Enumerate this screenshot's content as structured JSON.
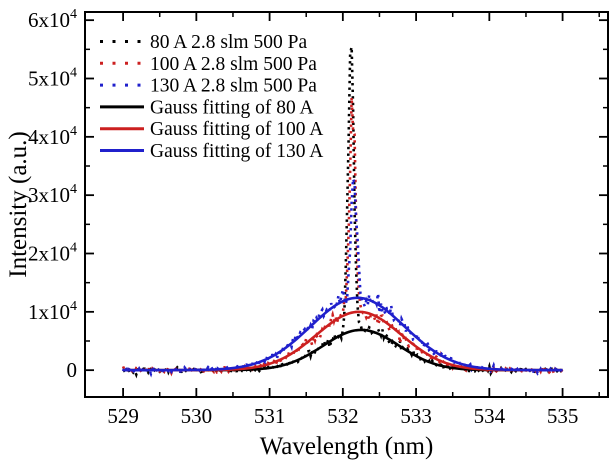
{
  "chart_data": {
    "type": "line",
    "title": "",
    "xlabel": "Wavelength (nm)",
    "ylabel": "Intensity (a.u.)",
    "xlim": [
      528.48,
      535.62
    ],
    "ylim": [
      -4600,
      61400
    ],
    "x_major_ticks": [
      529,
      530,
      531,
      532,
      533,
      534,
      535
    ],
    "x_minor_step": 0.5,
    "y_major_ticks": [
      0,
      10000,
      20000,
      30000,
      40000,
      50000,
      60000
    ],
    "y_tick_labels": [
      "0",
      "1x10^4",
      "2x10^4",
      "3x10^4",
      "4x10^4",
      "5x10^4",
      "6x10^4"
    ],
    "y_minor_step": 5000,
    "grid": false,
    "legend_position": "upper-left",
    "background_color": "#ffffff",
    "axis_color": "#000000",
    "colors": {
      "black": "#000000",
      "red": "#cc2020",
      "blue": "#2020cc"
    },
    "series": [
      {
        "label": "80 A 2.8 slm 500 Pa",
        "color": "#000000",
        "line_style": "dotted",
        "role": "measured",
        "x_range": [
          529,
          535
        ],
        "gauss": {
          "center": 532.25,
          "sigma": 0.52,
          "amplitude": 6900
        },
        "spike": {
          "center": 532.11,
          "sigma": 0.04,
          "amplitude": 47600
        },
        "peak_intensity": 54400,
        "noise_sd_base": 230,
        "noise_sd_rel": 0.045,
        "seed": 42
      },
      {
        "label": "100 A 2.8 slm 500 Pa",
        "color": "#cc2020",
        "line_style": "dotted",
        "role": "measured",
        "x_range": [
          529,
          535
        ],
        "gauss": {
          "center": 532.22,
          "sigma": 0.58,
          "amplitude": 10000
        },
        "spike": {
          "center": 532.13,
          "sigma": 0.04,
          "amplitude": 37000
        },
        "peak_intensity": 46900,
        "noise_sd_base": 230,
        "noise_sd_rel": 0.045,
        "seed": 7
      },
      {
        "label": "130 A 2.8 slm 500 Pa",
        "color": "#2020cc",
        "line_style": "dotted",
        "role": "measured",
        "x_range": [
          529,
          535
        ],
        "gauss": {
          "center": 532.2,
          "sigma": 0.64,
          "amplitude": 12400
        },
        "spike": {
          "center": 532.15,
          "sigma": 0.04,
          "amplitude": 20500
        },
        "peak_intensity": 32900,
        "noise_sd_base": 230,
        "noise_sd_rel": 0.045,
        "seed": 13
      },
      {
        "label": "Gauss fitting of 80 A",
        "color": "#000000",
        "line_style": "solid",
        "role": "fit",
        "x_range": [
          529,
          535
        ],
        "gauss": {
          "center": 532.25,
          "sigma": 0.52,
          "amplitude": 6900
        }
      },
      {
        "label": "Gauss fitting of 100 A",
        "color": "#cc2020",
        "line_style": "solid",
        "role": "fit",
        "x_range": [
          529,
          535
        ],
        "gauss": {
          "center": 532.22,
          "sigma": 0.58,
          "amplitude": 10000
        }
      },
      {
        "label": "Gauss fitting of 130 A",
        "color": "#2020cc",
        "line_style": "solid",
        "role": "fit",
        "x_range": [
          529,
          535
        ],
        "gauss": {
          "center": 532.2,
          "sigma": 0.64,
          "amplitude": 12400
        }
      }
    ]
  }
}
